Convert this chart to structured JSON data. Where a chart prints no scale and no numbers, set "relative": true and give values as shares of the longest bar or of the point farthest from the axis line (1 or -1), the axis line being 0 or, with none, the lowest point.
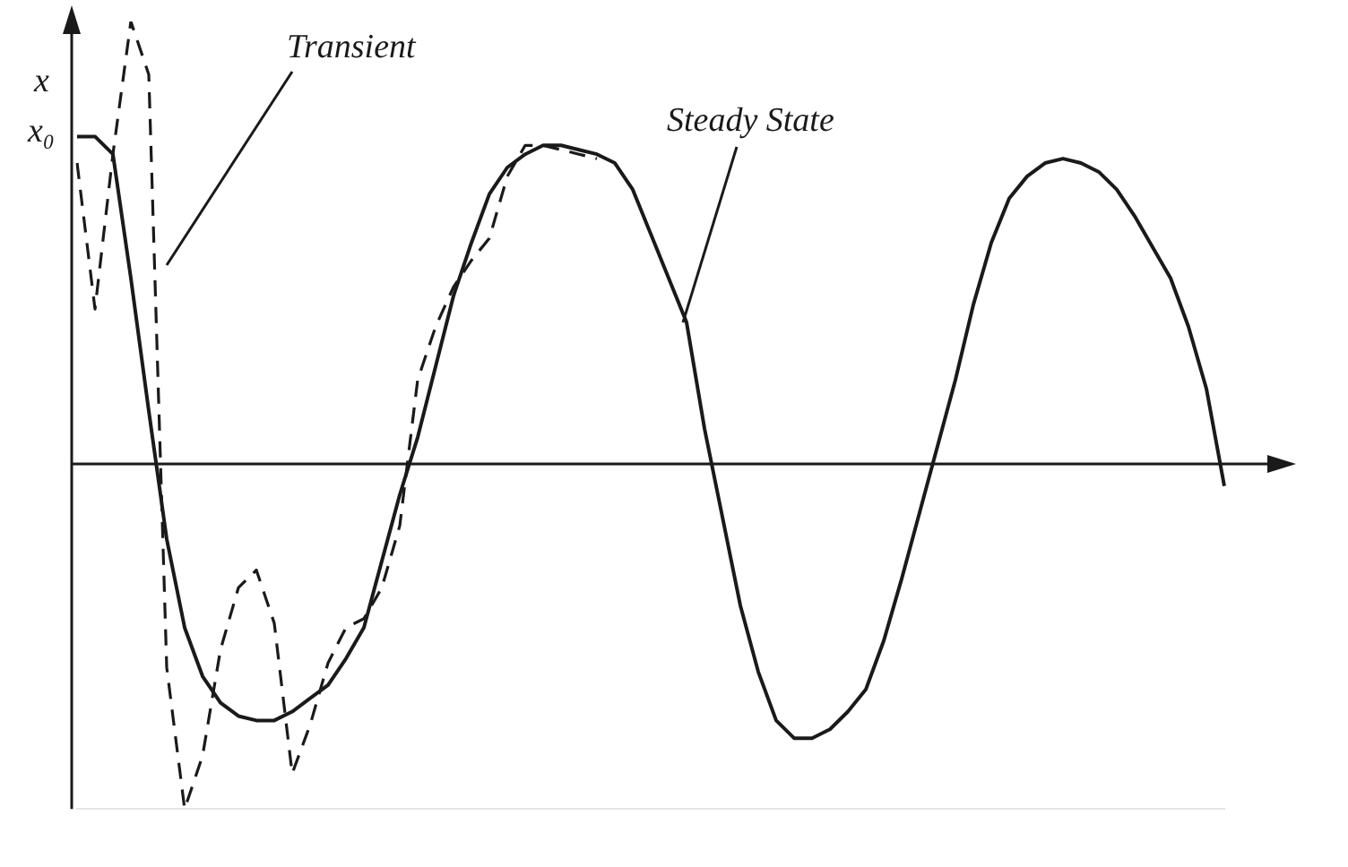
{
  "chart_data": {
    "type": "line",
    "relative": true,
    "ylabel": "x",
    "legend": false,
    "marker": "none",
    "categories": [
      null,
      null,
      null,
      null,
      null,
      null,
      null,
      null,
      null,
      null,
      null,
      null,
      null,
      null,
      null,
      null,
      null,
      null,
      null,
      null,
      null,
      null,
      null,
      null,
      null,
      null,
      null,
      null,
      null,
      null,
      null,
      null,
      null,
      null,
      null,
      null,
      null,
      null,
      null,
      null,
      null,
      null,
      null,
      null,
      null,
      null,
      null,
      null,
      null,
      null,
      null,
      null,
      null,
      null,
      null,
      null,
      null,
      null,
      null,
      null,
      null,
      null,
      null,
      null,
      null
    ],
    "series": [
      {
        "color": "#1a1a1a",
        "line_style": "solid",
        "values": [
          0.74,
          0.74,
          0.7,
          0.42,
          0.12,
          -0.17,
          -0.37,
          -0.48,
          -0.54,
          -0.57,
          -0.58,
          -0.58,
          -0.56,
          -0.53,
          -0.5,
          -0.44,
          -0.37,
          -0.22,
          -0.07,
          0.06,
          0.22,
          0.38,
          0.5,
          0.61,
          0.67,
          0.7,
          0.72,
          0.72,
          0.71,
          0.7,
          0.68,
          0.62,
          0.52,
          0.42,
          0.32,
          0.08,
          -0.12,
          -0.32,
          -0.47,
          -0.58,
          -0.62,
          -0.62,
          -0.6,
          -0.56,
          -0.51,
          -0.4,
          -0.26,
          -0.11,
          0.04,
          0.19,
          0.36,
          0.5,
          0.6,
          0.65,
          0.68,
          0.69,
          0.68,
          0.66,
          0.62,
          0.56,
          0.49,
          0.42,
          0.31,
          0.17,
          -0.05
        ]
      },
      {
        "color": "#1a1a1a",
        "line_style": "dashed",
        "values": [
          0.68,
          0.35,
          0.7,
          1,
          0.88,
          -0.46,
          -0.78,
          -0.66,
          -0.42,
          -0.28,
          -0.24,
          -0.36,
          -0.7,
          -0.59,
          -0.45,
          -0.37,
          -0.35,
          -0.28,
          -0.14,
          0.19,
          0.31,
          0.4,
          0.46,
          0.51,
          0.65,
          0.72,
          0.72,
          0.71,
          0.7,
          0.69,
          null,
          null,
          null,
          null,
          null,
          null,
          null,
          null,
          null,
          null,
          null,
          null,
          null,
          null,
          null,
          null,
          null,
          null,
          null,
          null,
          null,
          null,
          null,
          null,
          null,
          null,
          null,
          null,
          null,
          null,
          null,
          null,
          null,
          null,
          null
        ]
      }
    ],
    "annotations": [
      "Transient",
      "Steady State",
      "x₀"
    ]
  }
}
